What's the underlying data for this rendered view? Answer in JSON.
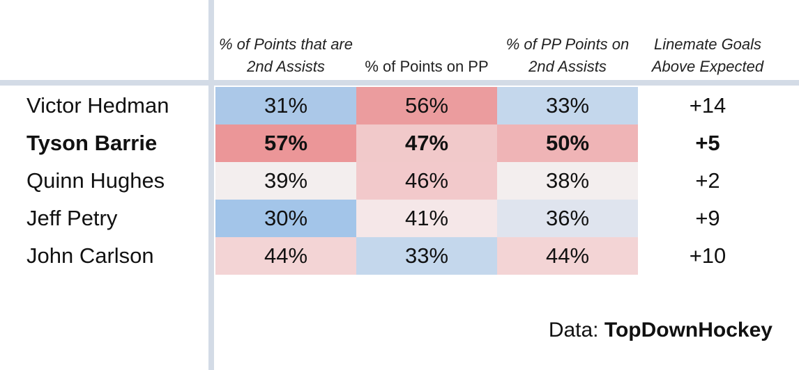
{
  "chart_data": {
    "type": "table",
    "columns": [
      "% of Points that are 2nd Assists",
      "% of Points on PP",
      "% of PP Points on 2nd Assists",
      "Linemate Goals Above Expected"
    ],
    "rows": [
      {
        "player": "Victor Hedman",
        "values": [
          "31%",
          "56%",
          "33%",
          "+14"
        ],
        "highlight": false
      },
      {
        "player": "Tyson Barrie",
        "values": [
          "57%",
          "47%",
          "50%",
          "+5"
        ],
        "highlight": true
      },
      {
        "player": "Quinn Hughes",
        "values": [
          "39%",
          "46%",
          "38%",
          "+2"
        ],
        "highlight": false
      },
      {
        "player": "Jeff Petry",
        "values": [
          "30%",
          "41%",
          "36%",
          "+9"
        ],
        "highlight": false
      },
      {
        "player": "John Carlson",
        "values": [
          "44%",
          "33%",
          "44%",
          "+10"
        ],
        "highlight": false
      }
    ],
    "cell_colors": [
      [
        "#abc8e8",
        "#eb9c9e",
        "#c4d7ec",
        null
      ],
      [
        "#eb9698",
        "#f1c9ca",
        "#efb4b6",
        null
      ],
      [
        "#f3eeee",
        "#f2c9cb",
        "#f3eeee",
        null
      ],
      [
        "#a3c5e9",
        "#f5e7e8",
        "#dfe4ee",
        null
      ],
      [
        "#f3d4d5",
        "#c4d7ec",
        "#f3d4d5",
        null
      ]
    ]
  },
  "footer": {
    "prefix": "Data: ",
    "source": "TopDownHockey"
  }
}
